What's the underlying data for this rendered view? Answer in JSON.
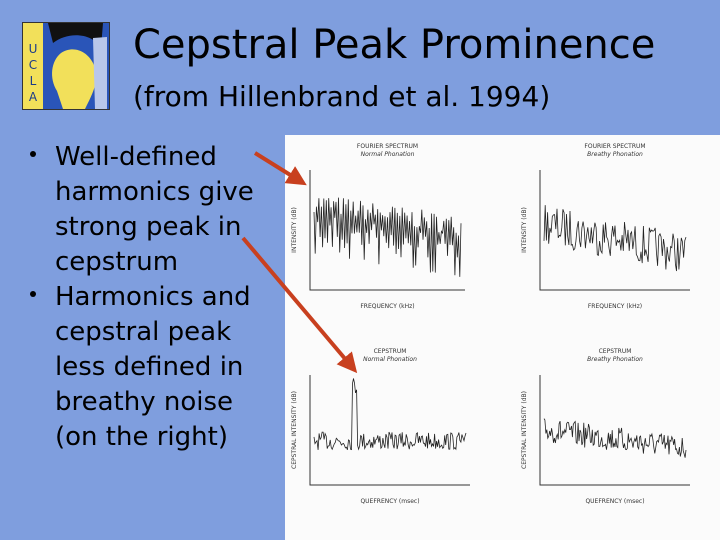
{
  "header": {
    "logo_letters": [
      "U",
      "C",
      "L",
      "A"
    ],
    "title": "Cepstral Peak Prominence",
    "subtitle": "(from Hillenbrand et al. 1994)"
  },
  "bullets": [
    [
      "Well-defined",
      "harmonics give",
      "strong peak in",
      "cepstrum"
    ],
    [
      "Harmonics and",
      "cepstral peak",
      "less defined in",
      "breathy noise",
      "(on the right)"
    ]
  ],
  "figure": {
    "panels": [
      {
        "title": "FOURIER SPECTRUM",
        "subtitle": "Normal Phonation",
        "x_label": "FREQUENCY (kHz)",
        "y_label": "INTENSITY (dB)"
      },
      {
        "title": "FOURIER SPECTRUM",
        "subtitle": "Breathy Phonation",
        "x_label": "FREQUENCY (kHz)",
        "y_label": "INTENSITY (dB)"
      },
      {
        "title": "CEPSTRUM",
        "subtitle": "Normal Phonation",
        "x_label": "QUEFRENCY (msec)",
        "y_label": "CEPSTRAL INTENSITY (dB)"
      },
      {
        "title": "CEPSTRUM",
        "subtitle": "Breathy Phonation",
        "x_label": "QUEFRENCY (msec)",
        "y_label": "CEPSTRAL INTENSITY (dB)"
      }
    ]
  }
}
